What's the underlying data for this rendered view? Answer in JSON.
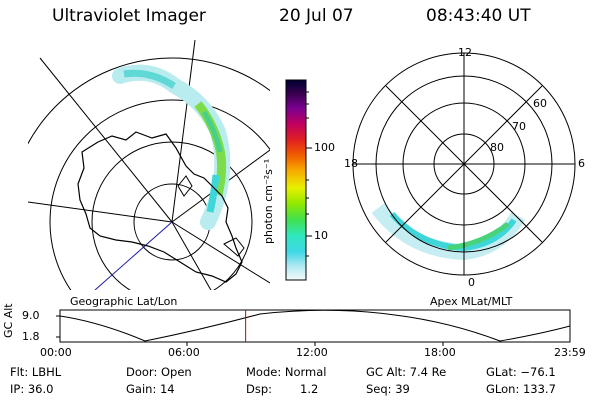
{
  "header": {
    "instrument": "Ultraviolet Imager",
    "date": "20 Jul 07",
    "time": "08:43:40 UT"
  },
  "left_panel": {
    "label": "Geographic Lat/Lon"
  },
  "right_panel": {
    "label": "Apex MLat/MLT",
    "clock_labels": [
      "12",
      "18",
      "6",
      "0"
    ],
    "lat_labels": [
      "60",
      "70",
      "80"
    ]
  },
  "colorbar": {
    "unit": "photon cm⁻²s⁻¹",
    "ticks": [
      "100",
      "10"
    ],
    "colors": [
      "#000033",
      "#2a004a",
      "#55007a",
      "#8a00a8",
      "#c00070",
      "#e00020",
      "#f05000",
      "#f8a000",
      "#e8e800",
      "#a0e800",
      "#40e040",
      "#30e8b0",
      "#30d8e8",
      "#b8ecf0",
      "#ffffff"
    ]
  },
  "timeline": {
    "ylabel": "GC Alt",
    "y_ticks": [
      "9.0",
      "1.8"
    ],
    "x_ticks": [
      "00:00",
      "06:00",
      "12:00",
      "18:00",
      "23:59"
    ],
    "marker_time": "08:43:40",
    "marker_fraction": 0.364,
    "marker_color": "#cc0000"
  },
  "info": {
    "flt": "Flt: LBHL",
    "ip": "IP: 36.0",
    "door": "Door: Open",
    "gain": "Gain: 14",
    "mode": "Mode: Normal",
    "dsp_label": "Dsp:",
    "dsp_value": "1.2",
    "gc_alt": "GC Alt: 7.4 Re",
    "seq": "Seq: 39",
    "glat": "GLat: −76.1",
    "glon": "GLon: 133.7"
  }
}
